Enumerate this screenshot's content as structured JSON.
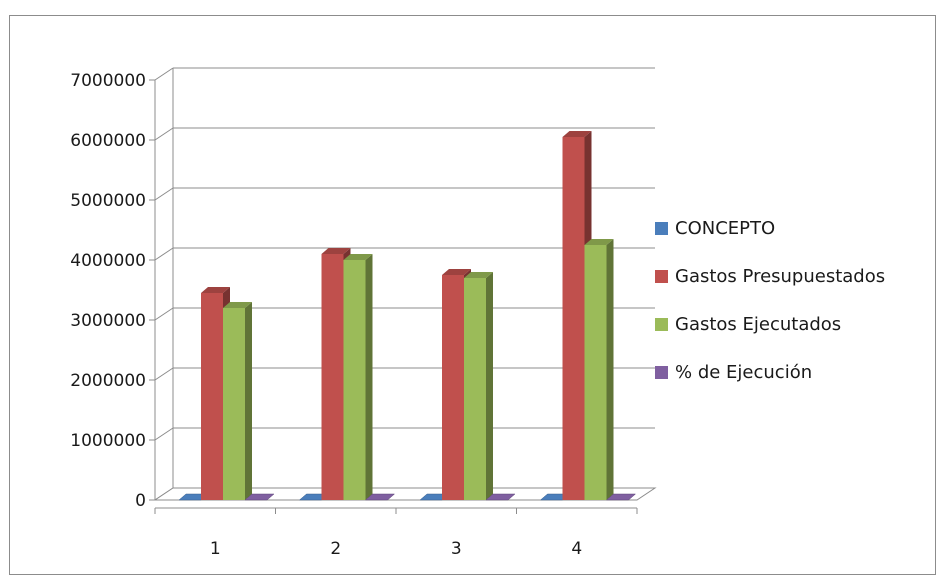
{
  "chart_data": {
    "type": "bar",
    "categories": [
      "1",
      "2",
      "3",
      "4"
    ],
    "series": [
      {
        "name": "CONCEPTO",
        "values": [
          0,
          0,
          0,
          0
        ],
        "color": "#4a7ebb"
      },
      {
        "name": "Gastos Presupuestados",
        "values": [
          3450000,
          4100000,
          3750000,
          6050000
        ],
        "color": "#c0504d"
      },
      {
        "name": "Gastos Ejecutados",
        "values": [
          3200000,
          4000000,
          3700000,
          4250000
        ],
        "color": "#9bbb59"
      },
      {
        "name": "% de Ejecución",
        "values": [
          0,
          0,
          0,
          0
        ],
        "color": "#7f5fa0"
      }
    ],
    "y_ticks": [
      "0",
      "1000000",
      "2000000",
      "3000000",
      "4000000",
      "5000000",
      "6000000",
      "7000000"
    ],
    "ylim": [
      0,
      7000000
    ],
    "grid": true,
    "legend_position": "right",
    "style": "3d-column"
  }
}
